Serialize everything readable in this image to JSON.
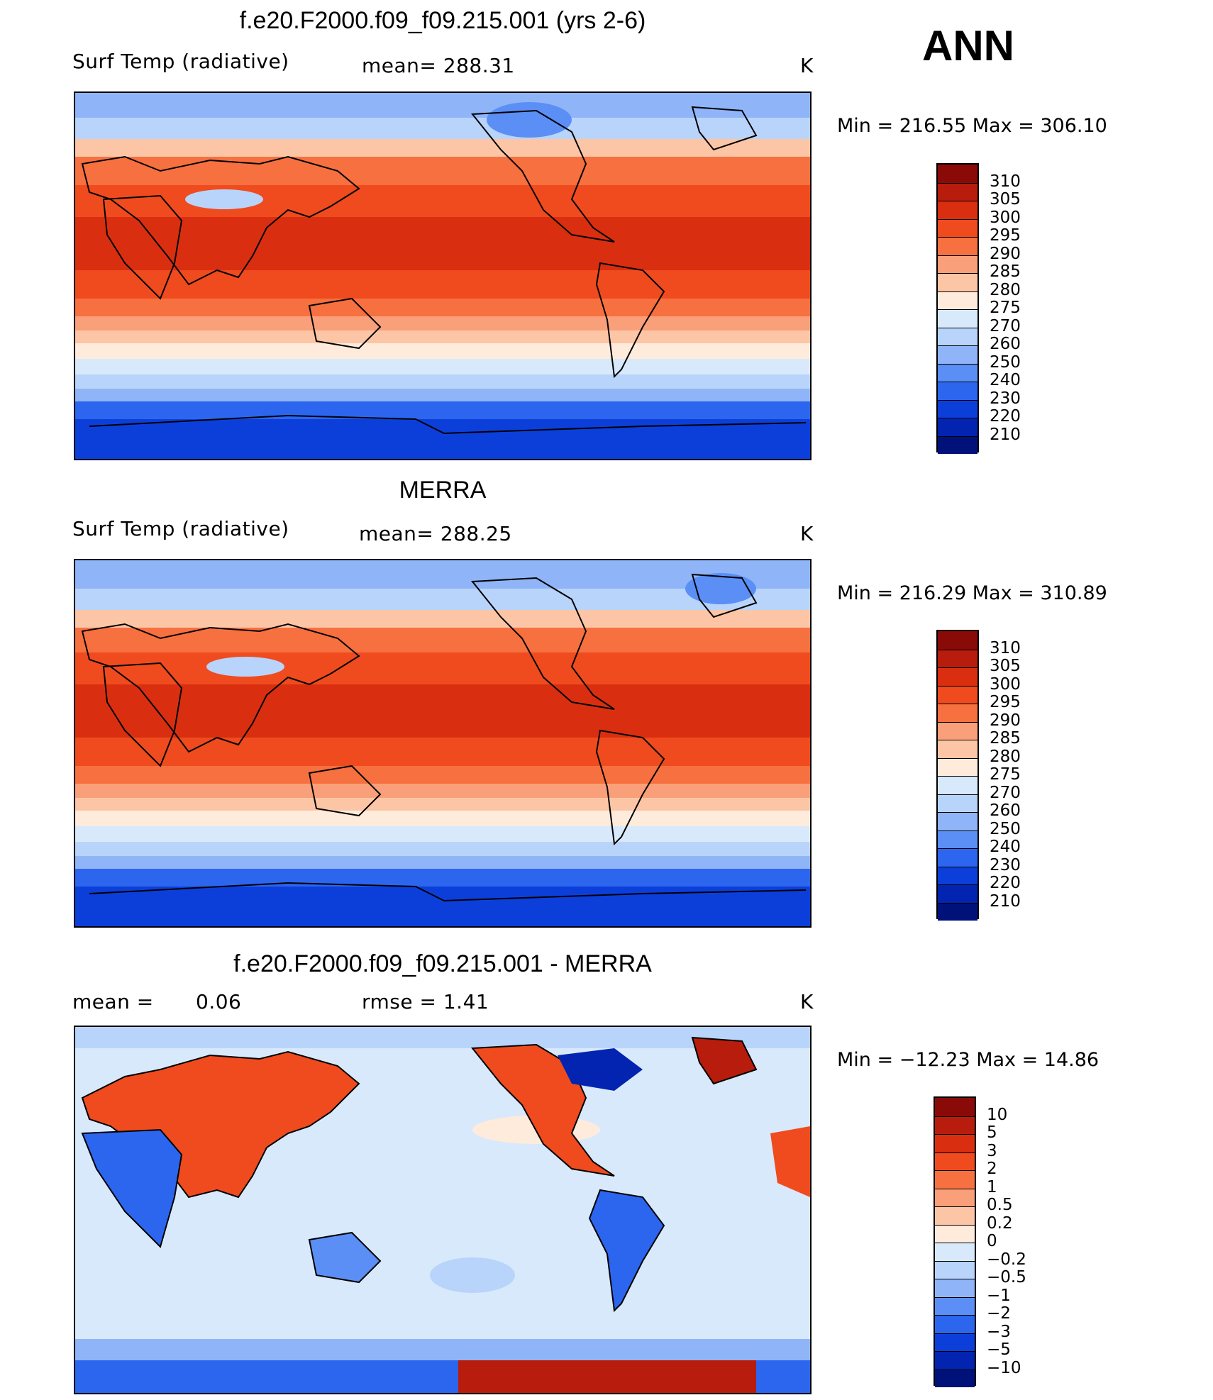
{
  "season": "ANN",
  "units": "K",
  "panels": [
    {
      "title": "f.e20.F2000.f09_f09.215.001 (yrs 2-6)",
      "variable": "Surf Temp (radiative)",
      "stat1": "mean= 288.31",
      "stat2": "",
      "units": "K",
      "minmax": "Min  =  216.55  Max  =  306.10",
      "kind": "abs"
    },
    {
      "title": "MERRA",
      "variable": "Surf Temp (radiative)",
      "stat1": "mean= 288.25",
      "stat2": "",
      "units": "K",
      "minmax": "Min  =  216.29  Max  =  310.89",
      "kind": "abs"
    },
    {
      "title": "f.e20.F2000.f09_f09.215.001 - MERRA",
      "variable": "mean  =",
      "stat1": "0.06",
      "stat2": "rmse  =     1.41",
      "units": "K",
      "minmax": "Min  =  −12.23  Max  =    14.86",
      "kind": "diff"
    }
  ],
  "colorbars": {
    "abs": {
      "labels": [
        "310",
        "305",
        "300",
        "295",
        "290",
        "285",
        "280",
        "275",
        "270",
        "260",
        "250",
        "240",
        "230",
        "220",
        "210"
      ],
      "colors": [
        "#8a0a08",
        "#b71c0c",
        "#d92f10",
        "#ef4b1f",
        "#f77040",
        "#f9a07a",
        "#fcc6a6",
        "#feebdc",
        "#d8e9fb",
        "#b9d4fa",
        "#8fb5f8",
        "#5b8ff5",
        "#2c66ef",
        "#0c3fda",
        "#0224b0",
        "#00127a"
      ]
    },
    "diff": {
      "labels": [
        "10",
        "5",
        "3",
        "2",
        "1",
        "0.5",
        "0.2",
        "0",
        "−0.2",
        "−0.5",
        "−1",
        "−2",
        "−3",
        "−5",
        "−10"
      ],
      "colors": [
        "#8a0a08",
        "#b71c0c",
        "#d92f10",
        "#ef4b1f",
        "#f77040",
        "#f9a07a",
        "#fcc6a6",
        "#feebdc",
        "#d8e9fb",
        "#b9d4fa",
        "#8fb5f8",
        "#5b8ff5",
        "#2c66ef",
        "#0c3fda",
        "#0224b0",
        "#00127a"
      ]
    }
  }
}
